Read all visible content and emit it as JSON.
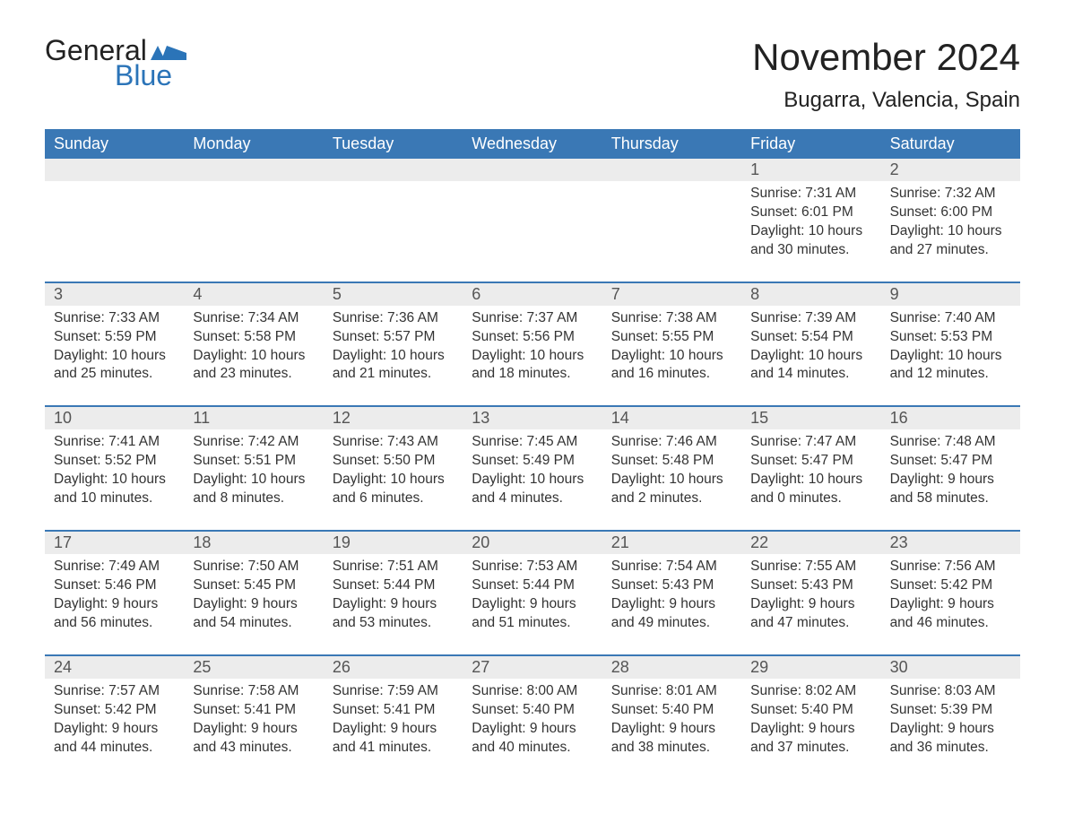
{
  "logo": {
    "word1": "General",
    "word2": "Blue",
    "accent_color": "#2b74b8"
  },
  "title": "November 2024",
  "location": "Bugarra, Valencia, Spain",
  "colors": {
    "header_bg": "#3a78b5",
    "header_text": "#ffffff",
    "daynum_bg": "#ececec",
    "week_border": "#3a78b5",
    "body_text": "#333333",
    "background": "#ffffff"
  },
  "day_names": [
    "Sunday",
    "Monday",
    "Tuesday",
    "Wednesday",
    "Thursday",
    "Friday",
    "Saturday"
  ],
  "weeks": [
    [
      {
        "blank": true
      },
      {
        "blank": true
      },
      {
        "blank": true
      },
      {
        "blank": true
      },
      {
        "blank": true
      },
      {
        "day": "1",
        "sunrise": "Sunrise: 7:31 AM",
        "sunset": "Sunset: 6:01 PM",
        "daylight": "Daylight: 10 hours and 30 minutes."
      },
      {
        "day": "2",
        "sunrise": "Sunrise: 7:32 AM",
        "sunset": "Sunset: 6:00 PM",
        "daylight": "Daylight: 10 hours and 27 minutes."
      }
    ],
    [
      {
        "day": "3",
        "sunrise": "Sunrise: 7:33 AM",
        "sunset": "Sunset: 5:59 PM",
        "daylight": "Daylight: 10 hours and 25 minutes."
      },
      {
        "day": "4",
        "sunrise": "Sunrise: 7:34 AM",
        "sunset": "Sunset: 5:58 PM",
        "daylight": "Daylight: 10 hours and 23 minutes."
      },
      {
        "day": "5",
        "sunrise": "Sunrise: 7:36 AM",
        "sunset": "Sunset: 5:57 PM",
        "daylight": "Daylight: 10 hours and 21 minutes."
      },
      {
        "day": "6",
        "sunrise": "Sunrise: 7:37 AM",
        "sunset": "Sunset: 5:56 PM",
        "daylight": "Daylight: 10 hours and 18 minutes."
      },
      {
        "day": "7",
        "sunrise": "Sunrise: 7:38 AM",
        "sunset": "Sunset: 5:55 PM",
        "daylight": "Daylight: 10 hours and 16 minutes."
      },
      {
        "day": "8",
        "sunrise": "Sunrise: 7:39 AM",
        "sunset": "Sunset: 5:54 PM",
        "daylight": "Daylight: 10 hours and 14 minutes."
      },
      {
        "day": "9",
        "sunrise": "Sunrise: 7:40 AM",
        "sunset": "Sunset: 5:53 PM",
        "daylight": "Daylight: 10 hours and 12 minutes."
      }
    ],
    [
      {
        "day": "10",
        "sunrise": "Sunrise: 7:41 AM",
        "sunset": "Sunset: 5:52 PM",
        "daylight": "Daylight: 10 hours and 10 minutes."
      },
      {
        "day": "11",
        "sunrise": "Sunrise: 7:42 AM",
        "sunset": "Sunset: 5:51 PM",
        "daylight": "Daylight: 10 hours and 8 minutes."
      },
      {
        "day": "12",
        "sunrise": "Sunrise: 7:43 AM",
        "sunset": "Sunset: 5:50 PM",
        "daylight": "Daylight: 10 hours and 6 minutes."
      },
      {
        "day": "13",
        "sunrise": "Sunrise: 7:45 AM",
        "sunset": "Sunset: 5:49 PM",
        "daylight": "Daylight: 10 hours and 4 minutes."
      },
      {
        "day": "14",
        "sunrise": "Sunrise: 7:46 AM",
        "sunset": "Sunset: 5:48 PM",
        "daylight": "Daylight: 10 hours and 2 minutes."
      },
      {
        "day": "15",
        "sunrise": "Sunrise: 7:47 AM",
        "sunset": "Sunset: 5:47 PM",
        "daylight": "Daylight: 10 hours and 0 minutes."
      },
      {
        "day": "16",
        "sunrise": "Sunrise: 7:48 AM",
        "sunset": "Sunset: 5:47 PM",
        "daylight": "Daylight: 9 hours and 58 minutes."
      }
    ],
    [
      {
        "day": "17",
        "sunrise": "Sunrise: 7:49 AM",
        "sunset": "Sunset: 5:46 PM",
        "daylight": "Daylight: 9 hours and 56 minutes."
      },
      {
        "day": "18",
        "sunrise": "Sunrise: 7:50 AM",
        "sunset": "Sunset: 5:45 PM",
        "daylight": "Daylight: 9 hours and 54 minutes."
      },
      {
        "day": "19",
        "sunrise": "Sunrise: 7:51 AM",
        "sunset": "Sunset: 5:44 PM",
        "daylight": "Daylight: 9 hours and 53 minutes."
      },
      {
        "day": "20",
        "sunrise": "Sunrise: 7:53 AM",
        "sunset": "Sunset: 5:44 PM",
        "daylight": "Daylight: 9 hours and 51 minutes."
      },
      {
        "day": "21",
        "sunrise": "Sunrise: 7:54 AM",
        "sunset": "Sunset: 5:43 PM",
        "daylight": "Daylight: 9 hours and 49 minutes."
      },
      {
        "day": "22",
        "sunrise": "Sunrise: 7:55 AM",
        "sunset": "Sunset: 5:43 PM",
        "daylight": "Daylight: 9 hours and 47 minutes."
      },
      {
        "day": "23",
        "sunrise": "Sunrise: 7:56 AM",
        "sunset": "Sunset: 5:42 PM",
        "daylight": "Daylight: 9 hours and 46 minutes."
      }
    ],
    [
      {
        "day": "24",
        "sunrise": "Sunrise: 7:57 AM",
        "sunset": "Sunset: 5:42 PM",
        "daylight": "Daylight: 9 hours and 44 minutes."
      },
      {
        "day": "25",
        "sunrise": "Sunrise: 7:58 AM",
        "sunset": "Sunset: 5:41 PM",
        "daylight": "Daylight: 9 hours and 43 minutes."
      },
      {
        "day": "26",
        "sunrise": "Sunrise: 7:59 AM",
        "sunset": "Sunset: 5:41 PM",
        "daylight": "Daylight: 9 hours and 41 minutes."
      },
      {
        "day": "27",
        "sunrise": "Sunrise: 8:00 AM",
        "sunset": "Sunset: 5:40 PM",
        "daylight": "Daylight: 9 hours and 40 minutes."
      },
      {
        "day": "28",
        "sunrise": "Sunrise: 8:01 AM",
        "sunset": "Sunset: 5:40 PM",
        "daylight": "Daylight: 9 hours and 38 minutes."
      },
      {
        "day": "29",
        "sunrise": "Sunrise: 8:02 AM",
        "sunset": "Sunset: 5:40 PM",
        "daylight": "Daylight: 9 hours and 37 minutes."
      },
      {
        "day": "30",
        "sunrise": "Sunrise: 8:03 AM",
        "sunset": "Sunset: 5:39 PM",
        "daylight": "Daylight: 9 hours and 36 minutes."
      }
    ]
  ]
}
